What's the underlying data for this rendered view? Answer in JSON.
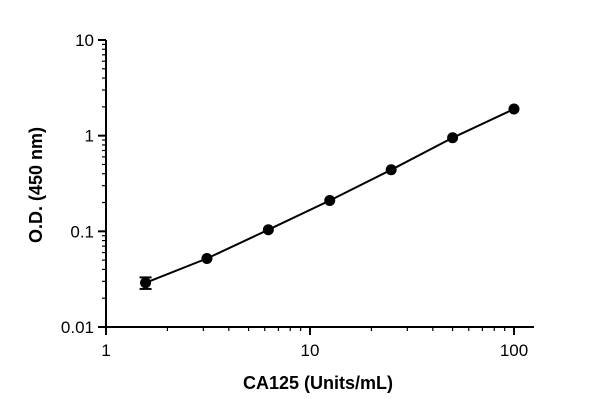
{
  "chart_data": {
    "type": "scatter",
    "title": "",
    "xlabel": "CA125  (Units/mL)",
    "ylabel": "O.D. (450 nm)",
    "x_scale": "log",
    "y_scale": "log",
    "xlim": [
      1,
      100
    ],
    "ylim": [
      0.01,
      10
    ],
    "x_ticks": [
      1,
      10,
      100
    ],
    "x_tick_labels": [
      "1",
      "10",
      "100"
    ],
    "y_ticks": [
      0.01,
      0.1,
      1,
      10
    ],
    "y_tick_labels": [
      "0.01",
      "0.1",
      "1",
      "10"
    ],
    "grid": false,
    "legend": "none",
    "fit_line": true,
    "series": [
      {
        "x": [
          1.5625,
          3.125,
          6.25,
          12.5,
          25,
          50,
          100
        ],
        "y": [
          0.029,
          0.052,
          0.104,
          0.21,
          0.44,
          0.95,
          1.9
        ],
        "y_error": [
          0.004,
          0,
          0,
          0,
          0,
          0,
          0
        ]
      }
    ],
    "colors": {
      "points": "#000000",
      "line": "#000000"
    }
  }
}
